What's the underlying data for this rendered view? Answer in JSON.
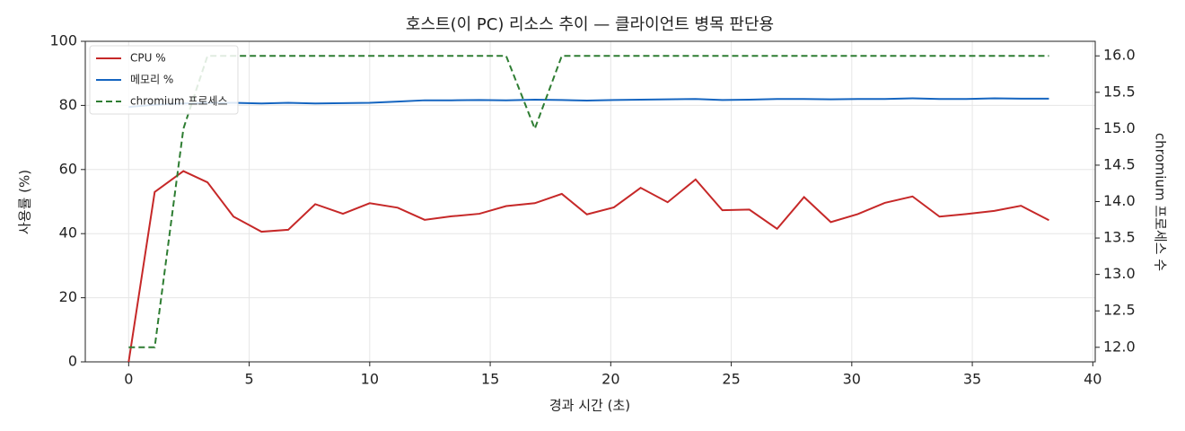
{
  "chart_data": {
    "type": "line",
    "title": "호스트(이 PC) 리소스 추이 — 클라이언트 병목 판단용",
    "x_label": "경과 시간 (초)",
    "y_label": "사용률 (%)",
    "y2_label": "chromium 프로세스 수",
    "x": [
      0,
      1.08,
      2.27,
      3.27,
      4.35,
      5.51,
      6.62,
      7.74,
      8.89,
      10.0,
      11.16,
      12.28,
      13.39,
      14.55,
      15.66,
      16.85,
      17.97,
      19.01,
      20.13,
      21.24,
      22.36,
      23.52,
      24.63,
      25.75,
      26.9,
      28.02,
      29.13,
      30.25,
      31.37,
      32.52,
      33.64,
      34.75,
      35.91,
      37.02,
      38.18
    ],
    "series": [
      {
        "name": "CPU %",
        "color": "#c62828",
        "values": [
          0,
          53,
          59.5,
          56,
          45.3,
          40.6,
          41.2,
          49.2,
          46.2,
          49.5,
          48.1,
          44.3,
          45.4,
          46.2,
          48.6,
          49.5,
          52.4,
          46,
          48.2,
          54.3,
          49.8,
          56.9,
          47.3,
          47.5,
          41.5,
          51.4,
          43.6,
          46.1,
          49.6,
          51.6,
          45.3,
          46.1,
          47.1,
          48.7,
          44.2
        ]
      },
      {
        "name": "메모리 %",
        "color": "#1565c0",
        "values": [
          79.5,
          80.2,
          80.6,
          80.8,
          80.8,
          80.6,
          80.8,
          80.6,
          80.7,
          80.8,
          81.2,
          81.6,
          81.6,
          81.7,
          81.6,
          81.8,
          81.7,
          81.5,
          81.7,
          81.8,
          81.9,
          82.0,
          81.7,
          81.8,
          82.0,
          82.0,
          81.9,
          82.0,
          82.0,
          82.2,
          82.0,
          82.0,
          82.2,
          82.1,
          82.1
        ]
      },
      {
        "name": "chromium 프로세스",
        "color": "#2e7d32",
        "dashed": true,
        "axis": "y2",
        "values": [
          12,
          12,
          15,
          16,
          16,
          16,
          16,
          16,
          16,
          16,
          16,
          16,
          16,
          16,
          16,
          15,
          16,
          16,
          16,
          16,
          16,
          16,
          16,
          16,
          16,
          16,
          16,
          16,
          16,
          16,
          16,
          16,
          16,
          16,
          16
        ]
      }
    ],
    "xlim": [
      -1.8,
      40.1
    ],
    "xticks": [
      0,
      5,
      10,
      15,
      20,
      25,
      30,
      35,
      40
    ],
    "ylim": [
      0,
      100
    ],
    "yticks": [
      0,
      20,
      40,
      60,
      80,
      100
    ],
    "y2lim": [
      11.8,
      16.2
    ],
    "y2ticks": [
      {
        "value": 12,
        "label": "12.0"
      },
      12.5,
      {
        "value": 13,
        "label": "13.0"
      },
      13.5,
      {
        "value": 14,
        "label": "14.0"
      },
      14.5,
      {
        "value": 15,
        "label": "15.0"
      },
      15.5,
      {
        "value": 16,
        "label": "16.0"
      }
    ],
    "grid": true,
    "legend": "upper-left"
  }
}
